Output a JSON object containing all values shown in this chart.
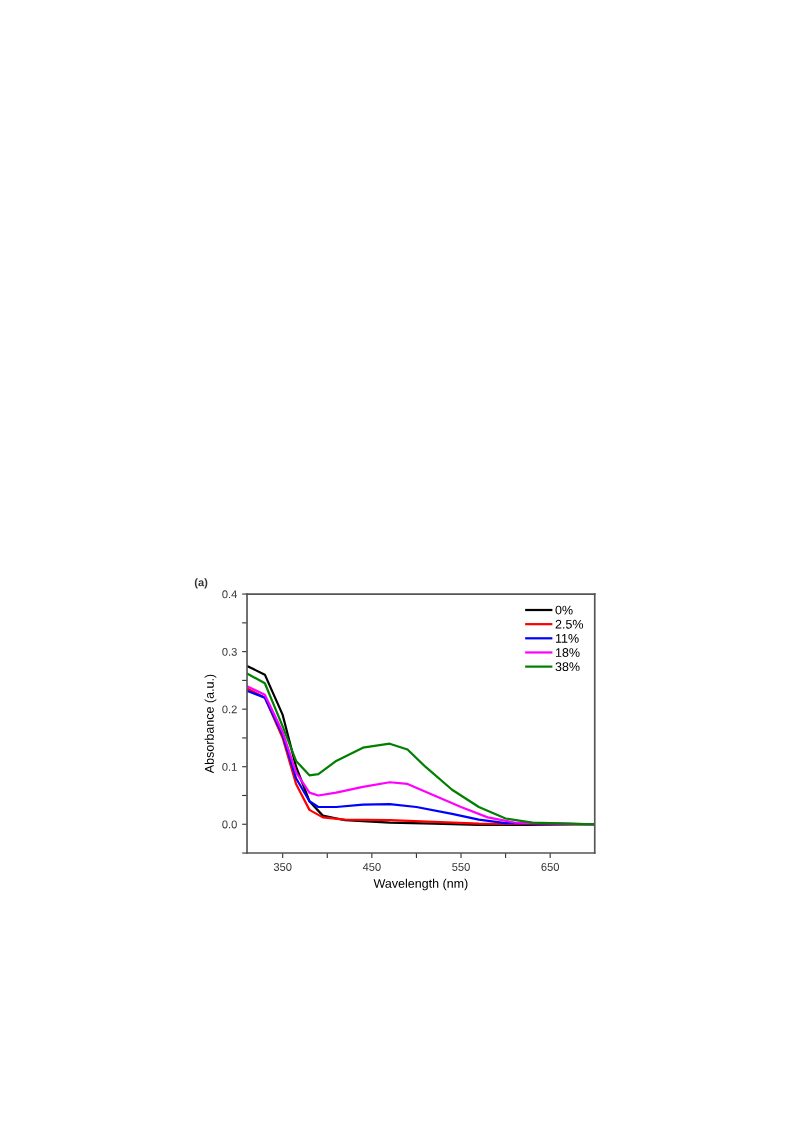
{
  "chart_data": {
    "type": "line",
    "annotations": [
      "(a)"
    ],
    "xlabel": "Wavelength (nm)",
    "ylabel": "Absorbance (a.u.)",
    "xlim": [
      310,
      700
    ],
    "ylim": [
      -0.05,
      0.4
    ],
    "xticks": [
      350,
      {
        "value": 400,
        "label": null
      },
      450,
      {
        "value": 500,
        "label": null
      },
      550,
      {
        "value": 600,
        "label": null
      },
      650
    ],
    "yticks": [
      {
        "value": -0.05,
        "label": null
      },
      {
        "value": 0.0,
        "label": "0.0"
      },
      {
        "value": 0.05,
        "label": null
      },
      {
        "value": 0.1,
        "label": "0.1"
      },
      {
        "value": 0.15,
        "label": null
      },
      {
        "value": 0.2,
        "label": "0.2"
      },
      {
        "value": 0.25,
        "label": null
      },
      {
        "value": 0.3,
        "label": "0.3"
      },
      {
        "value": 0.35,
        "label": null
      },
      {
        "value": 0.4,
        "label": "0.4"
      }
    ],
    "grid": false,
    "legend": "top right",
    "marker": "none",
    "line_style": "solid",
    "series": [
      {
        "name": "0%",
        "color": "#000000",
        "x": [
          310,
          330,
          350,
          365,
          380,
          395,
          420,
          470,
          520,
          570,
          620,
          700
        ],
        "values": [
          0.275,
          0.26,
          0.19,
          0.1,
          0.04,
          0.015,
          0.007,
          0.003,
          0.001,
          -0.001,
          -0.001,
          0.0
        ]
      },
      {
        "name": "2.5%",
        "color": "#ff0000",
        "x": [
          310,
          330,
          350,
          365,
          380,
          395,
          420,
          470,
          520,
          570,
          700
        ],
        "values": [
          0.236,
          0.22,
          0.15,
          0.07,
          0.025,
          0.012,
          0.008,
          0.007,
          0.004,
          0.001,
          0.0
        ]
      },
      {
        "name": "11%",
        "color": "#0000ff",
        "x": [
          310,
          330,
          350,
          365,
          380,
          390,
          410,
          440,
          470,
          500,
          540,
          570,
          600,
          700
        ],
        "values": [
          0.232,
          0.22,
          0.155,
          0.08,
          0.04,
          0.03,
          0.03,
          0.034,
          0.035,
          0.03,
          0.018,
          0.008,
          0.002,
          0.0
        ]
      },
      {
        "name": "18%",
        "color": "#ff00ff",
        "x": [
          310,
          330,
          350,
          365,
          380,
          390,
          410,
          440,
          470,
          490,
          520,
          550,
          580,
          610,
          700
        ],
        "values": [
          0.24,
          0.225,
          0.16,
          0.09,
          0.055,
          0.05,
          0.055,
          0.065,
          0.073,
          0.07,
          0.05,
          0.03,
          0.012,
          0.003,
          0.0
        ]
      },
      {
        "name": "38%",
        "color": "#008000",
        "x": [
          310,
          330,
          350,
          365,
          380,
          390,
          410,
          440,
          470,
          490,
          510,
          540,
          570,
          600,
          630,
          700
        ],
        "values": [
          0.262,
          0.245,
          0.17,
          0.11,
          0.085,
          0.087,
          0.11,
          0.133,
          0.14,
          0.13,
          0.1,
          0.06,
          0.03,
          0.01,
          0.003,
          0.0
        ]
      }
    ]
  }
}
